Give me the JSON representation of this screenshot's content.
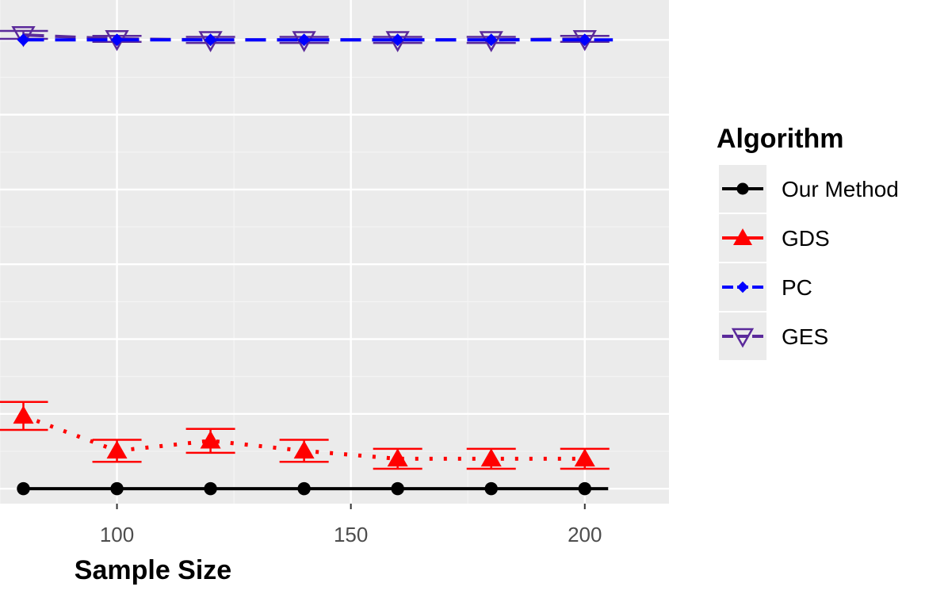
{
  "chart_data": {
    "type": "line",
    "xlabel": "Sample Size",
    "ylabel": "",
    "x_ticks": [
      100,
      150,
      200
    ],
    "xlim": [
      75,
      218
    ],
    "ylim": [
      -0.015,
      0.49
    ],
    "y_gridlines": [
      0,
      0.075,
      0.15,
      0.225,
      0.3,
      0.375,
      0.45
    ],
    "grid": true,
    "legend_title": "Algorithm",
    "legend_position": "right",
    "x": [
      80,
      100,
      120,
      140,
      160,
      180,
      200
    ],
    "series": [
      {
        "name": "Our Method",
        "color": "#000000",
        "linetype": "solid",
        "marker": "circle",
        "values": [
          0.0,
          0.0,
          0.0,
          0.0,
          0.0,
          0.0,
          0.0
        ],
        "errors": [
          0,
          0,
          0,
          0,
          0,
          0,
          0
        ]
      },
      {
        "name": "GDS",
        "color": "#ff0000",
        "linetype": "dotted",
        "marker": "triangle",
        "values": [
          0.073,
          0.038,
          0.048,
          0.038,
          0.03,
          0.03,
          0.03
        ],
        "errors": [
          0.014,
          0.011,
          0.012,
          0.011,
          0.01,
          0.01,
          0.01
        ]
      },
      {
        "name": "PC",
        "color": "#0000ff",
        "linetype": "dashed",
        "marker": "diamond",
        "values": [
          0.45,
          0.45,
          0.45,
          0.45,
          0.45,
          0.45,
          0.45
        ],
        "errors": [
          0,
          0,
          0,
          0,
          0,
          0,
          0
        ]
      },
      {
        "name": "GES",
        "color": "#5b2a9b",
        "linetype": "dashed",
        "marker": "triangle-down-open",
        "values": [
          0.455,
          0.451,
          0.45,
          0.45,
          0.45,
          0.45,
          0.451
        ],
        "errors": [
          0.004,
          0.003,
          0.003,
          0.003,
          0.003,
          0.003,
          0.003
        ]
      }
    ]
  }
}
